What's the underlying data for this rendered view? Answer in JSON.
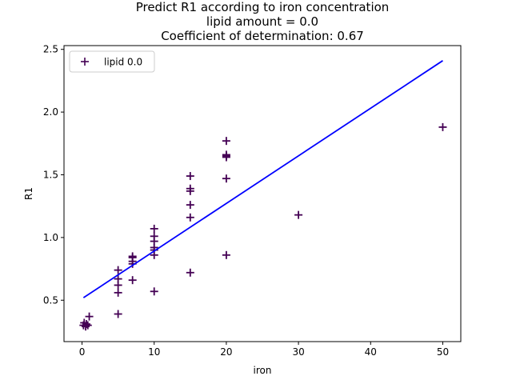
{
  "chart_data": {
    "type": "scatter",
    "title_lines": [
      "Predict R1 according to iron concentration",
      "lipid amount = 0.0",
      "Coefficient of determination: 0.67"
    ],
    "xlabel": "iron",
    "ylabel": "R1",
    "xlim": [
      -2.5,
      52.5
    ],
    "ylim": [
      0.17,
      2.53
    ],
    "xticks": [
      0,
      10,
      20,
      30,
      40,
      50
    ],
    "yticks": [
      0.5,
      1.0,
      1.5,
      2.0,
      2.5
    ],
    "xtick_labels": [
      "0",
      "10",
      "20",
      "30",
      "40",
      "50"
    ],
    "ytick_labels": [
      "0.5",
      "1.0",
      "1.5",
      "2.0",
      "2.5"
    ],
    "grid": false,
    "legend": {
      "position": "top-left",
      "entries": [
        {
          "label": "lipid 0.0",
          "marker": "plus",
          "color": "#440154"
        }
      ]
    },
    "series": [
      {
        "name": "lipid 0.0",
        "kind": "scatter",
        "marker": "plus",
        "color": "#440154",
        "points": [
          [
            0.2,
            0.3
          ],
          [
            0.3,
            0.32
          ],
          [
            0.5,
            0.29
          ],
          [
            0.6,
            0.31
          ],
          [
            0.8,
            0.3
          ],
          [
            1.0,
            0.37
          ],
          [
            5,
            0.39
          ],
          [
            5,
            0.56
          ],
          [
            5,
            0.62
          ],
          [
            5,
            0.67
          ],
          [
            5,
            0.74
          ],
          [
            7,
            0.66
          ],
          [
            7,
            0.79
          ],
          [
            7,
            0.81
          ],
          [
            7,
            0.84
          ],
          [
            7,
            0.85
          ],
          [
            10,
            0.57
          ],
          [
            10,
            0.86
          ],
          [
            10,
            0.9
          ],
          [
            10,
            0.92
          ],
          [
            10,
            0.97
          ],
          [
            10,
            1.01
          ],
          [
            10,
            1.07
          ],
          [
            15,
            0.72
          ],
          [
            15,
            1.16
          ],
          [
            15,
            1.26
          ],
          [
            15,
            1.37
          ],
          [
            15,
            1.39
          ],
          [
            15,
            1.49
          ],
          [
            20,
            0.86
          ],
          [
            20,
            1.47
          ],
          [
            20,
            1.64
          ],
          [
            20,
            1.65
          ],
          [
            20,
            1.66
          ],
          [
            20,
            1.77
          ],
          [
            30,
            1.18
          ],
          [
            50,
            1.88
          ]
        ]
      },
      {
        "kind": "fit-line",
        "color": "#0000ff",
        "x": [
          0.2,
          50
        ],
        "y": [
          0.52,
          2.41
        ]
      }
    ]
  }
}
